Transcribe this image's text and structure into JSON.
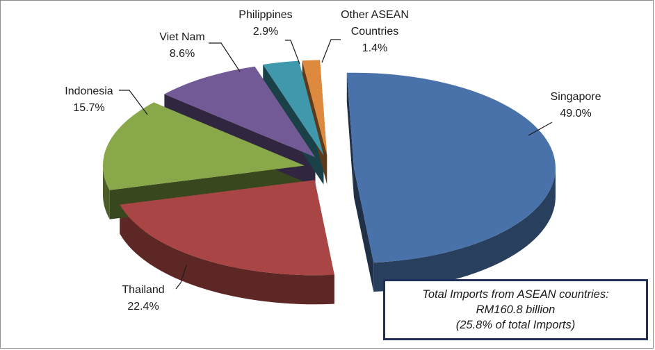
{
  "chart_data": {
    "type": "pie",
    "style": "3d-exploded",
    "slices": [
      {
        "label": "Singapore",
        "value": 49.0,
        "value_label": "49.0%",
        "color": "#4a72aa"
      },
      {
        "label": "Thailand",
        "value": 22.4,
        "value_label": "22.4%",
        "color": "#a94645"
      },
      {
        "label": "Indonesia",
        "value": 15.7,
        "value_label": "15.7%",
        "color": "#88a84a"
      },
      {
        "label": "Viet Nam",
        "value": 8.6,
        "value_label": "8.6%",
        "color": "#725a96"
      },
      {
        "label": "Philippines",
        "value": 2.9,
        "value_label": "2.9%",
        "color": "#3f98ab"
      },
      {
        "label": "Other ASEAN Countries",
        "value": 1.4,
        "value_label": "1.4%",
        "color": "#dd8a3f"
      }
    ],
    "annotation": {
      "line1": "Total Imports from ASEAN countries:",
      "line2": "RM160.8 billion",
      "line3": "(25.8% of total  Imports)"
    }
  }
}
